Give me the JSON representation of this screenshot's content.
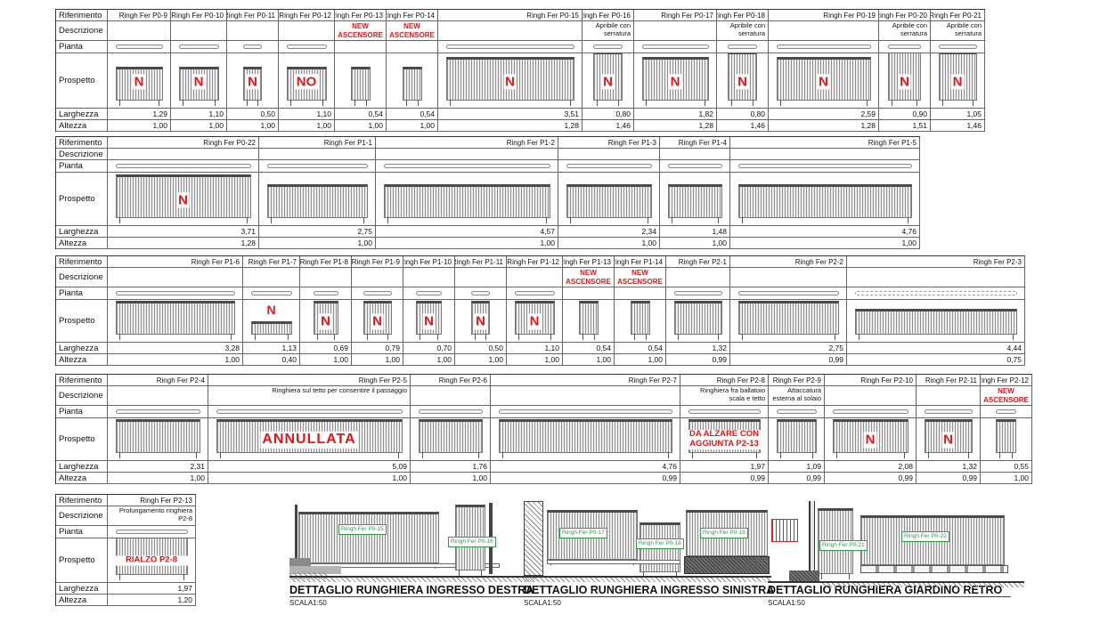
{
  "colors": {
    "accent_red": "#ee1212",
    "label_green": "#2f9e44"
  },
  "schedule": {
    "row_labels": [
      "Riferimento",
      "Descrizione",
      "Pianta",
      "Prospetto",
      "Larghezza",
      "Altezza"
    ],
    "blocks": [
      {
        "columns": [
          {
            "ref": "Ringh Fer P0-9",
            "note": "N",
            "larghezza": "1,29",
            "altezza": "1,00"
          },
          {
            "ref": "Ringh Fer P0-10",
            "note": "N",
            "larghezza": "1,10",
            "altezza": "1,00"
          },
          {
            "ref": "Ringh Fer P0-11",
            "note": "N",
            "larghezza": "0,50",
            "altezza": "1,00"
          },
          {
            "ref": "Ringh Fer P0-12",
            "note": "NO",
            "larghezza": "1,10",
            "altezza": "1,00"
          },
          {
            "ref": "Ringh Fer P0-13",
            "desc_red": "NEW ASCENSORE",
            "pianta": "none",
            "larghezza": "0,54",
            "altezza": "1,00"
          },
          {
            "ref": "Ringh Fer P0-14",
            "desc_red": "NEW ASCENSORE",
            "pianta": "none",
            "larghezza": "0,54",
            "altezza": "1,00"
          },
          {
            "ref": "Ringh Fer P0-15",
            "note": "N",
            "larghezza": "3,51",
            "altezza": "1,28"
          },
          {
            "ref": "Ringh Fer P0-16",
            "desc": "Apribile con serratura",
            "note": "N",
            "larghezza": "0,80",
            "altezza": "1,46"
          },
          {
            "ref": "Ringh Fer P0-17",
            "note": "N",
            "larghezza": "1,82",
            "altezza": "1,28"
          },
          {
            "ref": "Ringh Fer P0-18",
            "desc": "Apribile con serratura",
            "note": "N",
            "larghezza": "0,80",
            "altezza": "1,46"
          },
          {
            "ref": "Ringh Fer P0-19",
            "note": "N",
            "larghezza": "2,59",
            "altezza": "1,28"
          },
          {
            "ref": "Ringh Fer P0-20",
            "desc": "Apribile con serratura",
            "note": "N",
            "larghezza": "0,90",
            "altezza": "1,51"
          },
          {
            "ref": "Ringh Fer P0-21",
            "desc": "Apribile con serratura",
            "note": "N",
            "larghezza": "1,05",
            "altezza": "1,46"
          }
        ]
      },
      {
        "columns": [
          {
            "ref": "Ringh Fer P0-22",
            "note": "N",
            "larghezza": "3,71",
            "altezza": "1,28"
          },
          {
            "ref": "Ringh Fer P1-1",
            "larghezza": "2,75",
            "altezza": "1,00"
          },
          {
            "ref": "Ringh Fer P1-2",
            "larghezza": "4,57",
            "altezza": "1,00"
          },
          {
            "ref": "Ringh Fer P1-3",
            "larghezza": "2,34",
            "altezza": "1,00"
          },
          {
            "ref": "Ringh Fer P1-4",
            "larghezza": "1,48",
            "altezza": "1,00"
          },
          {
            "ref": "Ringh Fer P1-5",
            "larghezza": "4,76",
            "altezza": "1,00"
          }
        ]
      },
      {
        "columns": [
          {
            "ref": "Ringh Fer P1-6",
            "larghezza": "3,28",
            "altezza": "1,00"
          },
          {
            "ref": "Ringh Fer P1-7",
            "note": "N",
            "note_above": true,
            "larghezza": "1,13",
            "altezza": "0,40"
          },
          {
            "ref": "Ringh Fer P1-8",
            "note": "N",
            "larghezza": "0,69",
            "altezza": "1,00"
          },
          {
            "ref": "Ringh Fer P1-9",
            "note": "N",
            "larghezza": "0,79",
            "altezza": "1,00"
          },
          {
            "ref": "Ringh Fer P1-10",
            "note": "N",
            "larghezza": "0,70",
            "altezza": "1,00"
          },
          {
            "ref": "Ringh Fer P1-11",
            "note": "N",
            "larghezza": "0,50",
            "altezza": "1,00"
          },
          {
            "ref": "Ringh Fer P1-12",
            "note": "N",
            "larghezza": "1,10",
            "altezza": "1,00"
          },
          {
            "ref": "Ringh Fer P1-13",
            "desc_red": "NEW ASCENSORE",
            "pianta": "none",
            "larghezza": "0,54",
            "altezza": "1,00"
          },
          {
            "ref": "Ringh Fer P1-14",
            "desc_red": "NEW ASCENSORE",
            "pianta": "none",
            "larghezza": "0,54",
            "altezza": "1,00"
          },
          {
            "ref": "Ringh Fer P2-1",
            "larghezza": "1,32",
            "altezza": "0,99"
          },
          {
            "ref": "Ringh Fer P2-2",
            "larghezza": "2,75",
            "altezza": "0,99"
          },
          {
            "ref": "Ringh Fer P2-3",
            "pianta": "dashed",
            "larghezza": "4,44",
            "altezza": "0,75"
          }
        ]
      },
      {
        "columns": [
          {
            "ref": "Ringh Fer P2-4",
            "larghezza": "2,31",
            "altezza": "1,00"
          },
          {
            "ref": "Ringh Fer P2-5",
            "desc": "Ringhiera sul tetto per consentire il passaggio",
            "note": "ANNULLATA",
            "larghezza": "5,09",
            "altezza": "1,00"
          },
          {
            "ref": "Ringh Fer P2-6",
            "larghezza": "1,76",
            "altezza": "1,00"
          },
          {
            "ref": "Ringh Fer P2-7",
            "larghezza": "4,76",
            "altezza": "0,99"
          },
          {
            "ref": "Ringh Fer P2-8",
            "desc": "Ringhiera fra ballatoio scala e tetto",
            "note": "DA ALZARE CON AGGIUNTA P2-13",
            "larghezza": "1,97",
            "altezza": "0,99"
          },
          {
            "ref": "Ringh Fer P2-9",
            "desc": "Attaccatura esterna al solaio",
            "larghezza": "1,09",
            "altezza": "0,99"
          },
          {
            "ref": "Ringh Fer P2-10",
            "note": "N",
            "larghezza": "2,08",
            "altezza": "0,99"
          },
          {
            "ref": "Ringh Fer P2-11",
            "note": "N",
            "larghezza": "1,32",
            "altezza": "0,99"
          },
          {
            "ref": "Ringh Fer P2-12",
            "desc_red": "NEW ASCENSORE",
            "larghezza": "0,55",
            "altezza": "1,00"
          }
        ]
      },
      {
        "columns": [
          {
            "ref": "Ringh Fer P2-13",
            "desc": "Prolungamento ringhiera P2-8",
            "note": "RIALZO P2-8",
            "larghezza": "1,97",
            "altezza": "1,20"
          }
        ]
      }
    ]
  },
  "details": {
    "items": [
      {
        "title": "DETTAGLIO RUNGHIERA INGRESSO DESTRA",
        "scale": "SCALA1:50",
        "labels": [
          "Ringh Fer P0-15",
          "Ringh Fer P0-16"
        ]
      },
      {
        "title": "DETTAGLIO RUNGHIERA INGRESSO SINISTRA",
        "scale": "SCALA1:50",
        "labels": [
          "Ringh Fer P0-17",
          "Ringh Fer P0-18",
          "Ringh Fer P0-19"
        ]
      },
      {
        "title": "DETTAGLIO RUNGHIERA GIARDINO RETRO",
        "scale": "SCALA1:50",
        "labels": [
          "Ringh Fer P0-21",
          "Ringh Fer P0-22"
        ]
      }
    ]
  }
}
